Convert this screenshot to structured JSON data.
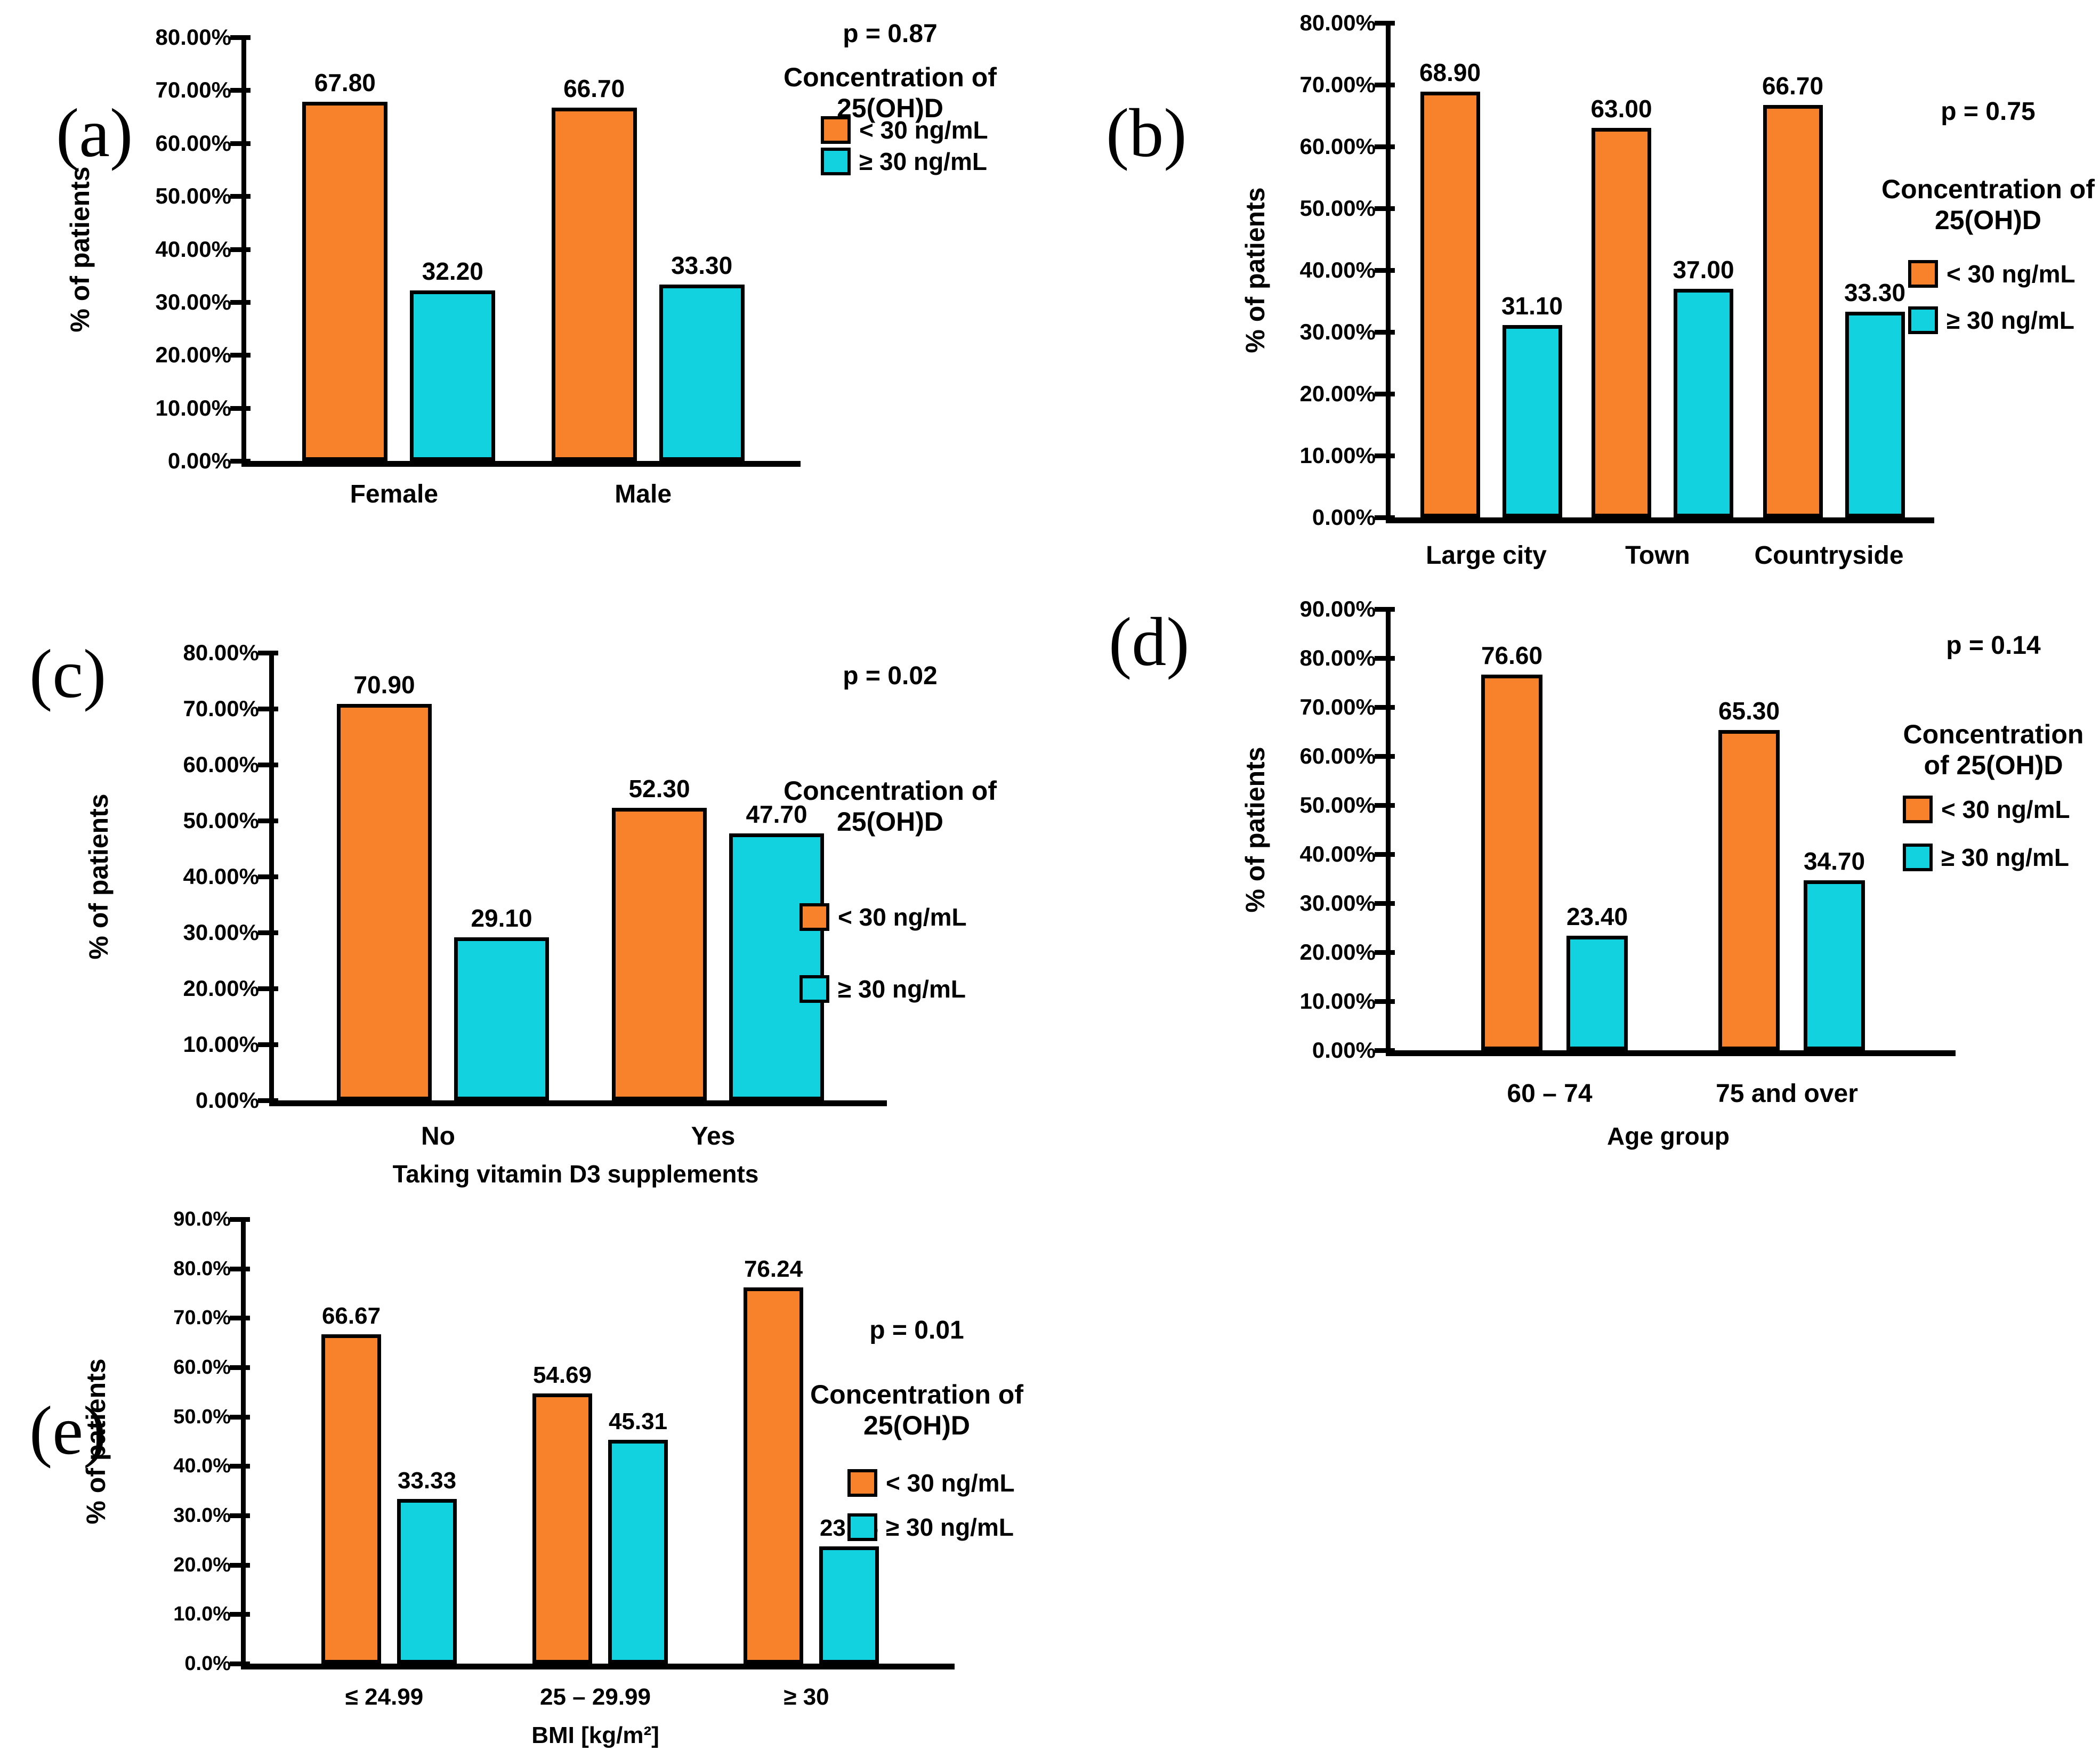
{
  "figure": {
    "background": "#FFFFFF",
    "series_colors": {
      "under_30": "#F8812B",
      "over_30": "#12D2E0"
    }
  },
  "chart_data": [
    {
      "id": "a",
      "type": "bar",
      "panel_label": "(a)",
      "p_value_label": "p = 0.87",
      "ylabel": "% of patients",
      "xlabel": "",
      "ylim": [
        0,
        80
      ],
      "grid": false,
      "legend_position": "right",
      "legend_title_lines": [
        "Concentration of",
        "25(OH)D"
      ],
      "ytick_labels": [
        "80.00%",
        "70.00%",
        "60.00%",
        "50.00%",
        "40.00%",
        "30.00%",
        "20.00%",
        "10.00%",
        "0.00%"
      ],
      "categories": [
        "Female",
        "Male"
      ],
      "series": [
        {
          "name": "< 30 ng/mL",
          "color": "#F8812B",
          "values": [
            67.8,
            66.7
          ],
          "value_labels": [
            "67.80",
            "66.70"
          ]
        },
        {
          "name": "≥ 30 ng/mL",
          "color": "#12D2E0",
          "values": [
            32.2,
            33.3
          ],
          "value_labels": [
            "32.20",
            "33.30"
          ]
        }
      ]
    },
    {
      "id": "b",
      "type": "bar",
      "panel_label": "(b)",
      "p_value_label": "p = 0.75",
      "ylabel": "% of patients",
      "xlabel": "",
      "ylim": [
        0,
        80
      ],
      "grid": false,
      "legend_position": "right",
      "legend_title_lines": [
        "Concentration of",
        "25(OH)D"
      ],
      "ytick_labels": [
        "80.00%",
        "70.00%",
        "60.00%",
        "50.00%",
        "40.00%",
        "30.00%",
        "20.00%",
        "10.00%",
        "0.00%"
      ],
      "categories": [
        "Large city",
        "Town",
        "Countryside"
      ],
      "series": [
        {
          "name": "< 30 ng/mL",
          "color": "#F8812B",
          "values": [
            68.9,
            63.0,
            66.7
          ],
          "value_labels": [
            "68.90",
            "63.00",
            "66.70"
          ]
        },
        {
          "name": "≥ 30 ng/mL",
          "color": "#12D2E0",
          "values": [
            31.1,
            37.0,
            33.3
          ],
          "value_labels": [
            "31.10",
            "37.00",
            "33.30"
          ]
        }
      ]
    },
    {
      "id": "c",
      "type": "bar",
      "panel_label": "(c)",
      "p_value_label": "p = 0.02",
      "ylabel": "% of patients",
      "xlabel": "Taking vitamin D3 supplements",
      "ylim": [
        0,
        80
      ],
      "grid": false,
      "legend_position": "right",
      "legend_title_lines": [
        "Concentration of",
        "25(OH)D"
      ],
      "ytick_labels": [
        "80.00%",
        "70.00%",
        "60.00%",
        "50.00%",
        "40.00%",
        "30.00%",
        "20.00%",
        "10.00%",
        "0.00%"
      ],
      "categories": [
        "No",
        "Yes"
      ],
      "series": [
        {
          "name": "< 30 ng/mL",
          "color": "#F8812B",
          "values": [
            70.9,
            52.3
          ],
          "value_labels": [
            "70.90",
            "52.30"
          ]
        },
        {
          "name": "≥ 30 ng/mL",
          "color": "#12D2E0",
          "values": [
            29.1,
            47.7
          ],
          "value_labels": [
            "29.10",
            "47.70"
          ]
        }
      ]
    },
    {
      "id": "d",
      "type": "bar",
      "panel_label": "(d)",
      "p_value_label": "p = 0.14",
      "ylabel": "% of patients",
      "xlabel": "Age group",
      "ylim": [
        0,
        90
      ],
      "grid": false,
      "legend_position": "right",
      "legend_title_lines": [
        "Concentration",
        "of 25(OH)D"
      ],
      "ytick_labels": [
        "90.00%",
        "80.00%",
        "70.00%",
        "60.00%",
        "50.00%",
        "40.00%",
        "30.00%",
        "20.00%",
        "10.00%",
        "0.00%"
      ],
      "categories": [
        "60 – 74",
        "75 and over"
      ],
      "series": [
        {
          "name": "< 30 ng/mL",
          "color": "#F8812B",
          "values": [
            76.6,
            65.3
          ],
          "value_labels": [
            "76.60",
            "65.30"
          ]
        },
        {
          "name": "≥ 30 ng/mL",
          "color": "#12D2E0",
          "values": [
            23.4,
            34.7
          ],
          "value_labels": [
            "23.40",
            "34.70"
          ]
        }
      ]
    },
    {
      "id": "e",
      "type": "bar",
      "panel_label": "(e)",
      "p_value_label": "p = 0.01",
      "ylabel": "% of patients",
      "xlabel": "BMI [kg/m²]",
      "ylim": [
        0,
        90
      ],
      "grid": false,
      "legend_position": "right",
      "legend_title_lines": [
        "Concentration of",
        "25(OH)D"
      ],
      "ytick_labels": [
        "90.0%",
        "80.0%",
        "70.0%",
        "60.0%",
        "50.0%",
        "40.0%",
        "30.0%",
        "20.0%",
        "10.0%",
        "0.0%"
      ],
      "categories": [
        "≤ 24.99",
        "25 – 29.99",
        "≥ 30"
      ],
      "series": [
        {
          "name": "< 30 ng/mL",
          "color": "#F8812B",
          "values": [
            66.67,
            54.69,
            76.24
          ],
          "value_labels": [
            "66.67",
            "54.69",
            "76.24"
          ]
        },
        {
          "name": "≥ 30 ng/mL",
          "color": "#12D2E0",
          "values": [
            33.33,
            45.31,
            23.76
          ],
          "value_labels": [
            "33.33",
            "45.31",
            "23.76"
          ]
        }
      ]
    }
  ]
}
